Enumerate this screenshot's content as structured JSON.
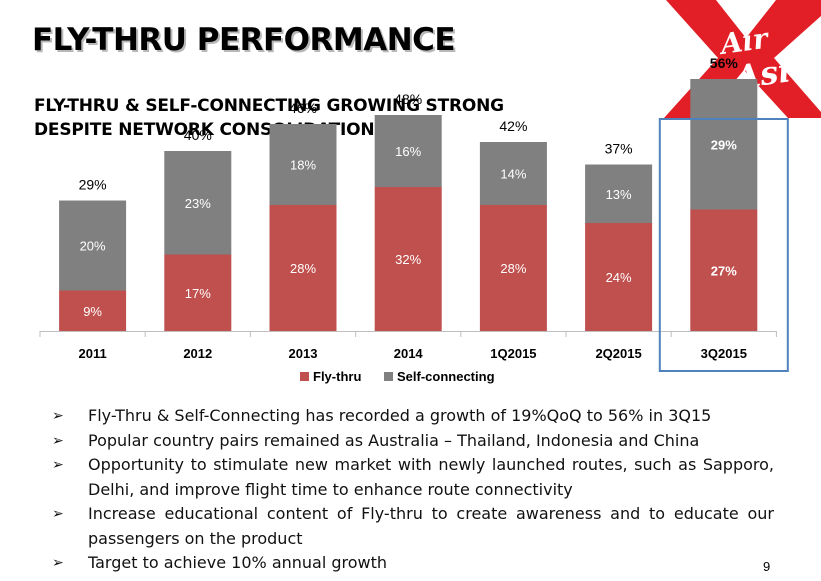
{
  "title": "FLY-THRU PERFORMANCE",
  "subtitle_lines": [
    "FLY-THRU & SELF-CONNECTING GROWING STRONG",
    "DESPITE NETWORK CONSOLIDATION"
  ],
  "logo": {
    "line1": "Air",
    "line2": "Asia",
    "icon": "airasia-logo-icon",
    "color": "#e21f26"
  },
  "chart_data": {
    "type": "bar",
    "stacked": true,
    "categories": [
      "2011",
      "2012",
      "2013",
      "2014",
      "1Q2015",
      "2Q2015",
      "3Q2015"
    ],
    "series": [
      {
        "name": "Fly-thru",
        "values": [
          9,
          17,
          28,
          32,
          28,
          24,
          27
        ],
        "labels": [
          "9%",
          "17%",
          "28%",
          "32%",
          "28%",
          "24%",
          "27%"
        ],
        "color": "#c0504d"
      },
      {
        "name": "Self-connecting",
        "values": [
          20,
          23,
          18,
          16,
          14,
          13,
          29
        ],
        "labels": [
          "20%",
          "23%",
          "18%",
          "16%",
          "14%",
          "13%",
          "29%"
        ],
        "color": "#808080"
      }
    ],
    "totals": [
      "29%",
      "40%",
      "46%",
      "48%",
      "42%",
      "37%",
      "56%"
    ],
    "highlight_category": "3Q2015",
    "highlight_color": "#4f81bd",
    "ylim": [
      0,
      60
    ],
    "grid": false,
    "legend_position": "bottom"
  },
  "bullets": [
    "Fly-Thru & Self-Connecting has recorded a growth of 19%QoQ to 56% in 3Q15",
    "Popular country pairs remained as Australia – Thailand, Indonesia and China",
    "Opportunity to stimulate new market with newly launched routes, such as Sapporo, Delhi, and improve flight time to enhance route connectivity",
    "Increase educational content of Fly-thru to create awareness and to educate our passengers on the product",
    "Target to achieve 10% annual growth"
  ],
  "bullet_icon": "arrow-bullet-icon",
  "page_number": "9"
}
